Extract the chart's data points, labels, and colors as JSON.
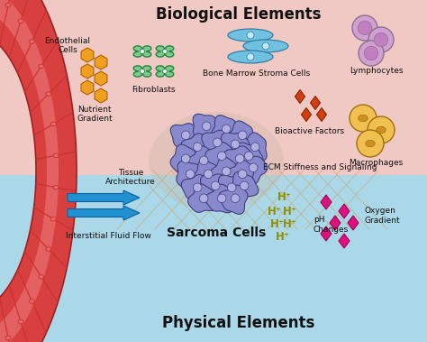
{
  "title_top": "Biological Elements",
  "title_bottom": "Physical Elements",
  "bg_top_color": "#f0c8c4",
  "bg_bottom_color": "#aad8e8",
  "labels": {
    "endothelial": "Endothelial\nCells",
    "fibroblasts": "Fibroblasts",
    "bone_marrow": "Bone Marrow Stroma Cells",
    "lymphocytes": "Lymphocytes",
    "nutrient": "Nutrient\nGradient",
    "bioactive": "Bioactive Factors",
    "macrophages": "Macrophages",
    "ecm": "ECM Stiffness and Signaling",
    "tissue": "Tissue\nArchitecture",
    "sarcoma": "Sarcoma Cells",
    "interstitial": "Interstitial Fluid Flow",
    "oxygen": "Oxygen\nGradient",
    "pH": "pH\nChanges"
  },
  "colors": {
    "fibroblast_fill": "#80c890",
    "fibroblast_edge": "#208840",
    "bone_marrow_fill": "#70c0e0",
    "bone_marrow_edge": "#2878a0",
    "lymphocyte_fill": "#d0a0d0",
    "lymphocyte_edge": "#806090",
    "macrophage_fill": "#f0c050",
    "macrophage_edge": "#a07010",
    "nutrient_fill": "#f0a020",
    "nutrient_edge": "#b06000",
    "bioactive_fill": "#d04010",
    "bioactive_edge": "#802000",
    "oxygen_fill": "#e0108080",
    "sarcoma_fill": "#8888cc",
    "sarcoma_edge": "#404080",
    "sarcoma_nucleus": "#aaaaee",
    "ecm_line": "#c8a060",
    "arrow_fill": "#2090d0",
    "arrow_edge": "#1060a0",
    "hplus_color": "#909000",
    "vessel_outer": "#d84040",
    "vessel_inner": "#e87070",
    "vessel_segment": "#c83030"
  }
}
